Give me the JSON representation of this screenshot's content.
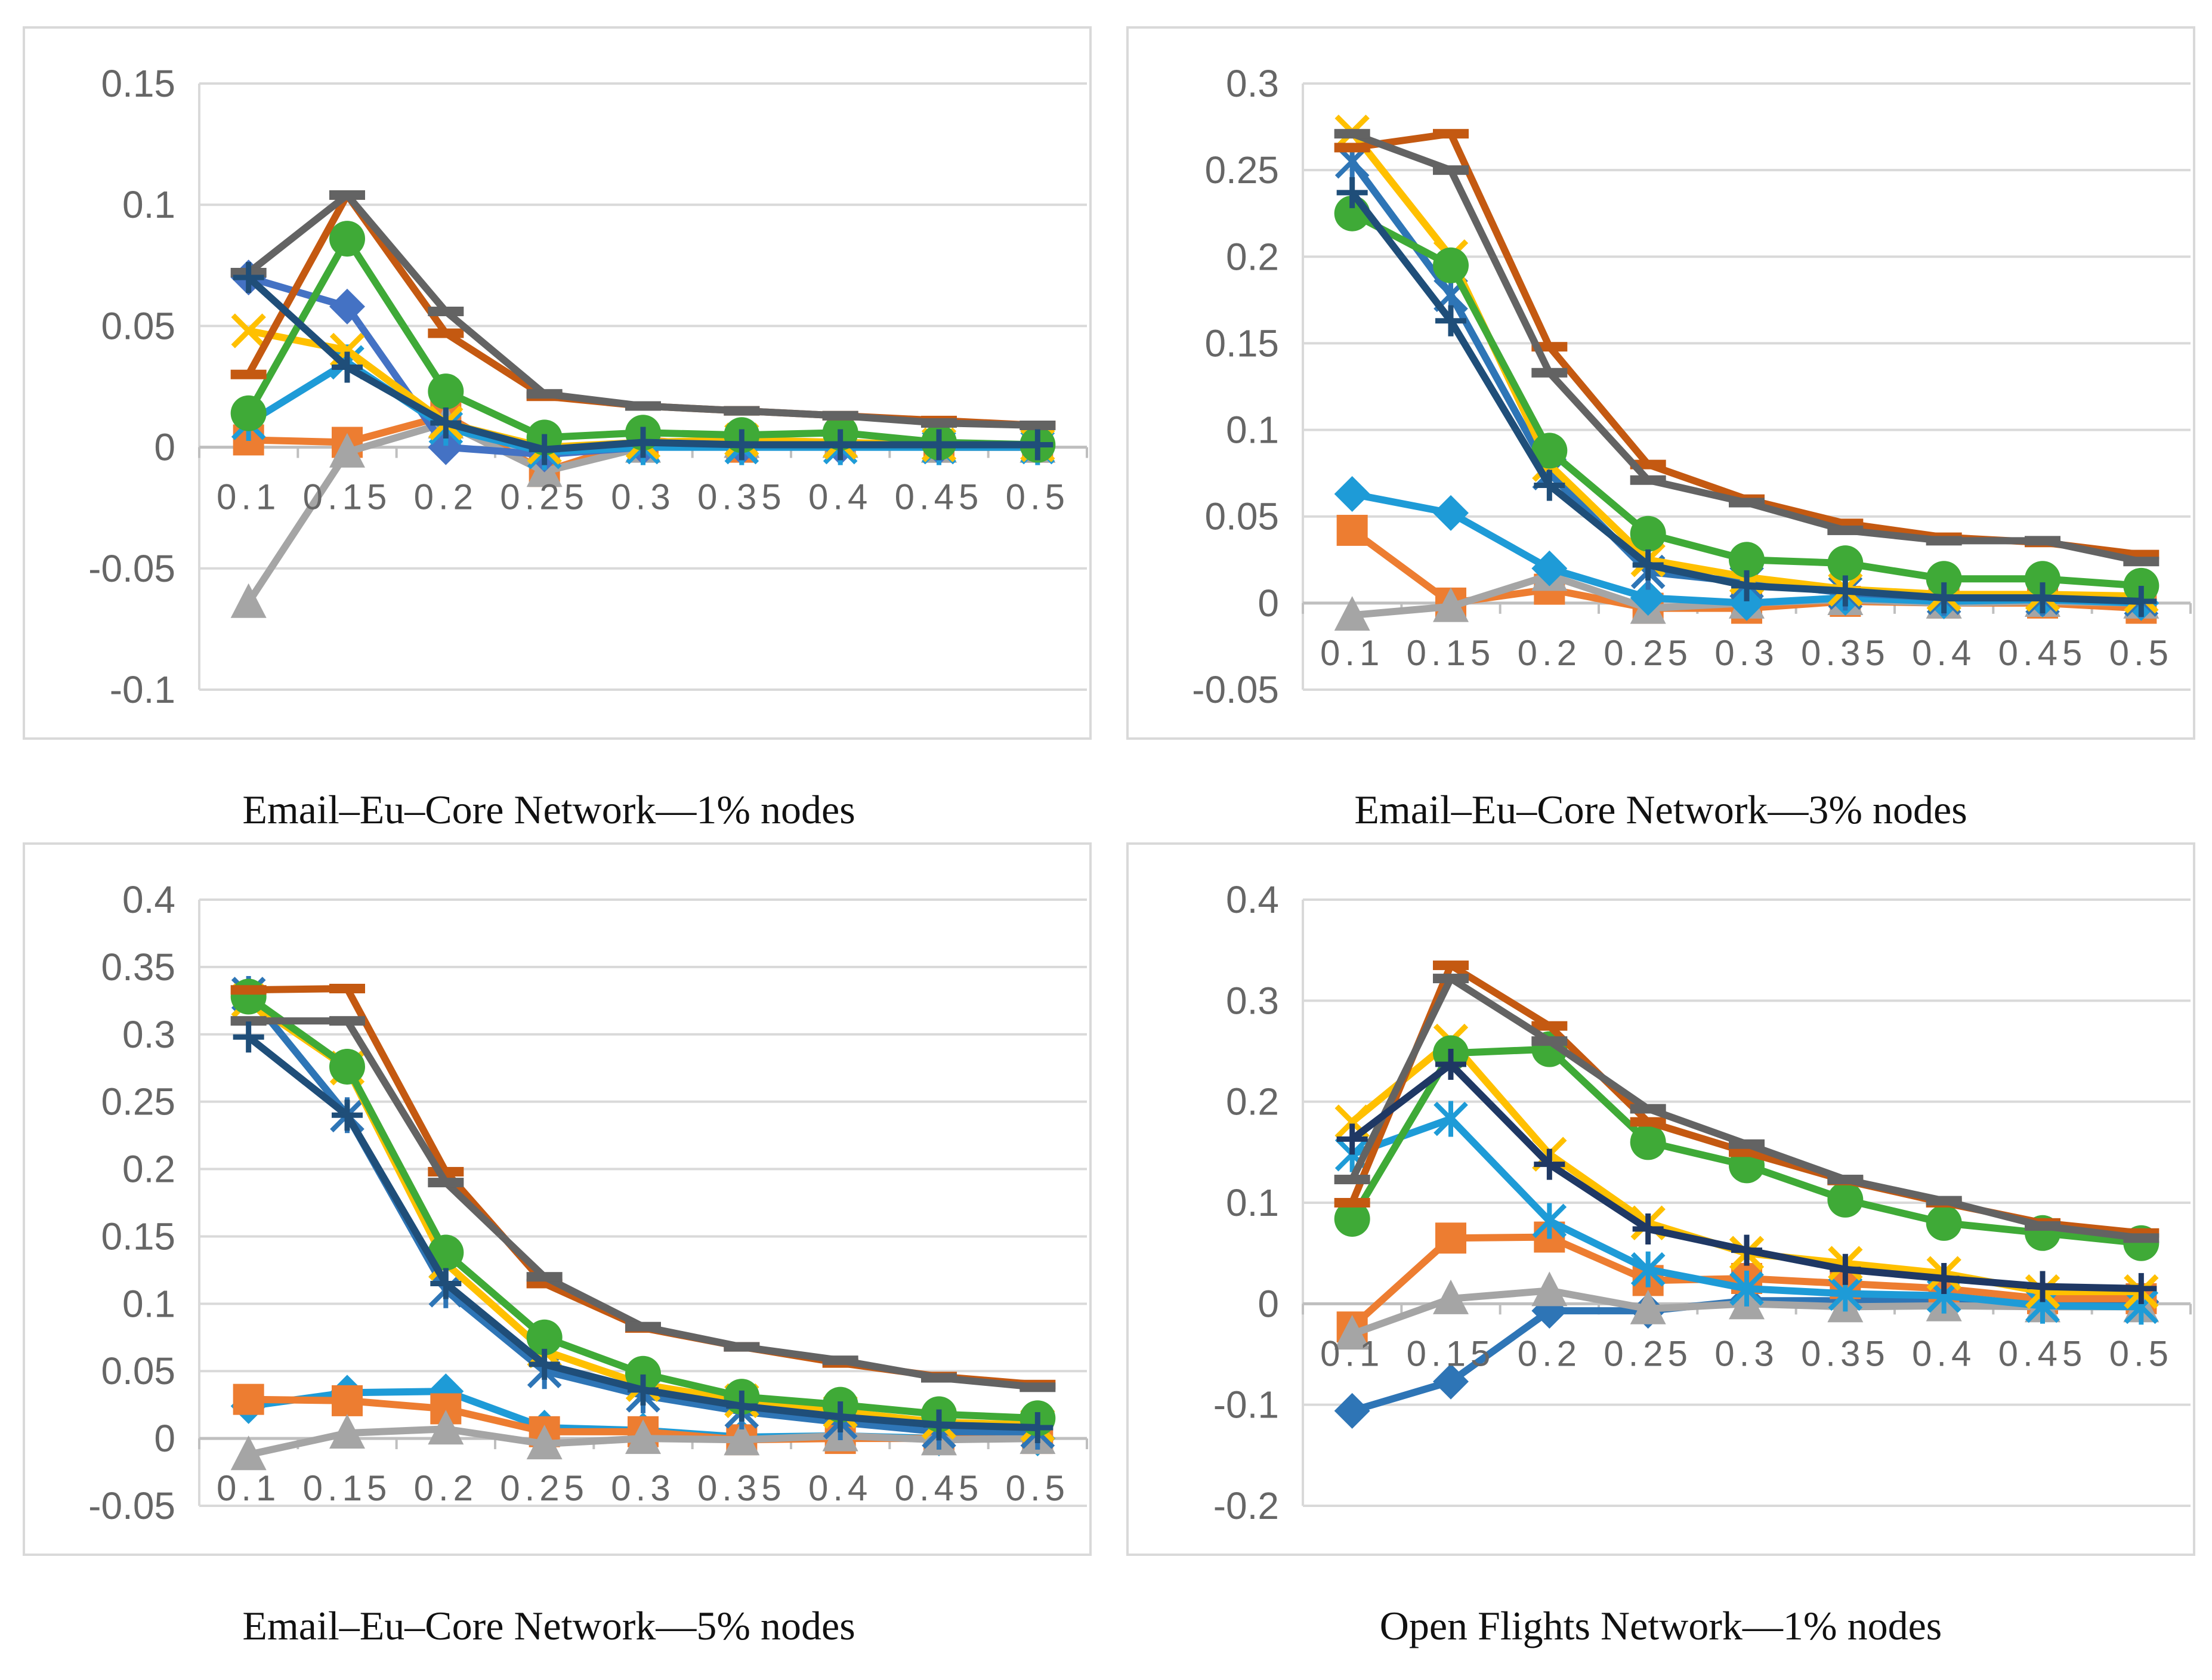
{
  "chart_data": [
    {
      "type": "line",
      "title": "Email–Eu–Core Network—1% nodes",
      "x": [
        "0.1",
        "0.15",
        "0.2",
        "0.25",
        "0.3",
        "0.35",
        "0.4",
        "0.45",
        "0.5"
      ],
      "ylim": [
        -0.1,
        0.15
      ],
      "yticks": [
        "-0.1",
        "-0.05",
        "0",
        "0.05",
        "0.1",
        "0.15"
      ],
      "ytick_values": [
        -0.1,
        -0.05,
        0,
        0.05,
        0.1,
        0.15
      ],
      "xlabel": "",
      "ylabel": "",
      "grid": true,
      "series": [
        {
          "name": "series-orange",
          "color": "#ed7d31",
          "marker": "square",
          "values": [
            0.003,
            0.002,
            0.013,
            -0.01,
            0.003,
            0.0,
            0.002,
            0.0,
            0.0
          ]
        },
        {
          "name": "series-gray-triangle",
          "color": "#a5a5a5",
          "marker": "triangle",
          "values": [
            -0.064,
            -0.002,
            0.01,
            -0.01,
            0.0,
            0.002,
            0.002,
            0.0,
            0.0
          ]
        },
        {
          "name": "series-light-blue-diamond",
          "color": "#4472c4",
          "marker": "diamond",
          "values": [
            0.07,
            0.058,
            0.0,
            -0.003,
            0.0,
            0.0,
            0.0,
            0.0,
            0.0
          ]
        },
        {
          "name": "series-cyan-star",
          "color": "#1e9bd7",
          "marker": "star",
          "values": [
            0.01,
            0.035,
            0.008,
            -0.002,
            0.0,
            0.0,
            0.0,
            0.0,
            0.0
          ]
        },
        {
          "name": "series-yellow-x",
          "color": "#ffc000",
          "marker": "x",
          "values": [
            0.048,
            0.04,
            0.01,
            0.0,
            0.002,
            0.003,
            0.002,
            0.001,
            0.001
          ]
        },
        {
          "name": "series-green-circle",
          "color": "#3faa37",
          "marker": "circle",
          "values": [
            0.014,
            0.086,
            0.023,
            0.004,
            0.006,
            0.005,
            0.006,
            0.002,
            0.001
          ]
        },
        {
          "name": "series-dark-orange-dash",
          "color": "#c45911",
          "marker": "dash",
          "values": [
            0.03,
            0.104,
            0.047,
            0.021,
            0.017,
            0.015,
            0.013,
            0.011,
            0.009
          ]
        },
        {
          "name": "series-dark-gray-dash",
          "color": "#636363",
          "marker": "dash",
          "values": [
            0.072,
            0.104,
            0.056,
            0.022,
            0.017,
            0.015,
            0.013,
            0.01,
            0.009
          ]
        },
        {
          "name": "series-navy-plus",
          "color": "#1f4e79",
          "marker": "plus",
          "values": [
            0.07,
            0.033,
            0.01,
            -0.001,
            0.002,
            0.001,
            0.001,
            0.001,
            0.001
          ]
        }
      ]
    },
    {
      "type": "line",
      "title": "Email–Eu–Core Network—3% nodes",
      "x": [
        "0.1",
        "0.15",
        "0.2",
        "0.25",
        "0.3",
        "0.35",
        "0.4",
        "0.45",
        "0.5"
      ],
      "ylim": [
        -0.05,
        0.3
      ],
      "yticks": [
        "-0.05",
        "0",
        "0.05",
        "0.1",
        "0.15",
        "0.2",
        "0.25",
        "0.3"
      ],
      "ytick_values": [
        -0.05,
        0,
        0.05,
        0.1,
        0.15,
        0.2,
        0.25,
        0.3
      ],
      "xlabel": "",
      "ylabel": "",
      "grid": true,
      "series": [
        {
          "name": "series-orange",
          "color": "#ed7d31",
          "marker": "square",
          "values": [
            0.042,
            0.0,
            0.008,
            -0.003,
            -0.003,
            0.001,
            0.0,
            0.0,
            -0.003
          ]
        },
        {
          "name": "series-gray-triangle",
          "color": "#a5a5a5",
          "marker": "triangle",
          "values": [
            -0.007,
            -0.002,
            0.016,
            -0.003,
            0.0,
            0.002,
            0.0,
            0.001,
            0.0
          ]
        },
        {
          "name": "series-light-blue-diamond",
          "color": "#1e9bd7",
          "marker": "diamond",
          "values": [
            0.063,
            0.052,
            0.02,
            0.003,
            0.0,
            0.003,
            0.001,
            0.002,
            0.0
          ]
        },
        {
          "name": "series-blue-star",
          "color": "#2e75b6",
          "marker": "star",
          "values": [
            0.255,
            0.178,
            0.075,
            0.018,
            0.012,
            0.006,
            0.003,
            0.003,
            0.002
          ]
        },
        {
          "name": "series-yellow-x",
          "color": "#ffc000",
          "marker": "x",
          "values": [
            0.272,
            0.2,
            0.08,
            0.025,
            0.015,
            0.008,
            0.005,
            0.005,
            0.004
          ]
        },
        {
          "name": "series-green-circle",
          "color": "#3faa37",
          "marker": "circle",
          "values": [
            0.225,
            0.195,
            0.088,
            0.04,
            0.025,
            0.023,
            0.014,
            0.014,
            0.01
          ]
        },
        {
          "name": "series-dark-orange-dash",
          "color": "#c45911",
          "marker": "dash",
          "values": [
            0.263,
            0.271,
            0.148,
            0.08,
            0.06,
            0.046,
            0.038,
            0.035,
            0.028
          ]
        },
        {
          "name": "series-dark-gray-dash",
          "color": "#636363",
          "marker": "dash",
          "values": [
            0.271,
            0.25,
            0.133,
            0.071,
            0.058,
            0.042,
            0.036,
            0.036,
            0.024
          ]
        },
        {
          "name": "series-navy-plus",
          "color": "#1f4e79",
          "marker": "plus",
          "values": [
            0.237,
            0.163,
            0.068,
            0.022,
            0.01,
            0.007,
            0.003,
            0.003,
            0.001
          ]
        }
      ]
    },
    {
      "type": "line",
      "title": "Email–Eu–Core Network—5% nodes",
      "x": [
        "0.1",
        "0.15",
        "0.2",
        "0.25",
        "0.3",
        "0.35",
        "0.4",
        "0.45",
        "0.5"
      ],
      "ylim": [
        -0.05,
        0.4
      ],
      "yticks": [
        "-0.05",
        "0",
        "0.05",
        "0.1",
        "0.15",
        "0.2",
        "0.25",
        "0.3",
        "0.35",
        "0.4"
      ],
      "ytick_values": [
        -0.05,
        0,
        0.05,
        0.1,
        0.15,
        0.2,
        0.25,
        0.3,
        0.35,
        0.4
      ],
      "xlabel": "",
      "ylabel": "",
      "grid": true,
      "series": [
        {
          "name": "series-light-blue-diamond",
          "color": "#1e9bd7",
          "marker": "diamond",
          "values": [
            0.024,
            0.034,
            0.035,
            0.008,
            0.006,
            0.001,
            0.002,
            0.0,
            0.0
          ]
        },
        {
          "name": "series-orange",
          "color": "#ed7d31",
          "marker": "square",
          "values": [
            0.029,
            0.028,
            0.022,
            0.005,
            0.005,
            -0.001,
            0.0,
            0.0,
            0.0
          ]
        },
        {
          "name": "series-gray-triangle",
          "color": "#a5a5a5",
          "marker": "triangle",
          "values": [
            -0.012,
            0.004,
            0.007,
            -0.004,
            0.0,
            -0.001,
            0.002,
            -0.001,
            0.0
          ]
        },
        {
          "name": "series-blue-star",
          "color": "#2e75b6",
          "marker": "star",
          "values": [
            0.33,
            0.24,
            0.11,
            0.05,
            0.032,
            0.02,
            0.012,
            0.005,
            0.005
          ]
        },
        {
          "name": "series-yellow-x",
          "color": "#ffc000",
          "marker": "x",
          "values": [
            0.325,
            0.275,
            0.13,
            0.065,
            0.04,
            0.028,
            0.02,
            0.012,
            0.01
          ]
        },
        {
          "name": "series-green-circle",
          "color": "#3faa37",
          "marker": "circle",
          "values": [
            0.328,
            0.276,
            0.138,
            0.075,
            0.048,
            0.031,
            0.025,
            0.018,
            0.015
          ]
        },
        {
          "name": "series-dark-orange-dash",
          "color": "#c45911",
          "marker": "dash",
          "values": [
            0.333,
            0.334,
            0.198,
            0.115,
            0.082,
            0.068,
            0.056,
            0.046,
            0.04
          ]
        },
        {
          "name": "series-dark-gray-dash",
          "color": "#636363",
          "marker": "dash",
          "values": [
            0.31,
            0.31,
            0.19,
            0.12,
            0.083,
            0.068,
            0.058,
            0.045,
            0.038
          ]
        },
        {
          "name": "series-navy-plus",
          "color": "#1f4e79",
          "marker": "plus",
          "values": [
            0.298,
            0.24,
            0.115,
            0.055,
            0.036,
            0.024,
            0.016,
            0.01,
            0.008
          ]
        }
      ]
    },
    {
      "type": "line",
      "title": "Open Flights Network—1% nodes",
      "x": [
        "0.1",
        "0.15",
        "0.2",
        "0.25",
        "0.3",
        "0.35",
        "0.4",
        "0.45",
        "0.5"
      ],
      "ylim": [
        -0.2,
        0.4
      ],
      "yticks": [
        "-0.2",
        "-0.1",
        "0",
        "0.1",
        "0.2",
        "0.3",
        "0.4"
      ],
      "ytick_values": [
        -0.2,
        -0.1,
        0,
        0.1,
        0.2,
        0.3,
        0.4
      ],
      "xlabel": "",
      "ylabel": "",
      "grid": true,
      "series": [
        {
          "name": "series-blue-diamond",
          "color": "#2e75b6",
          "marker": "diamond",
          "values": [
            -0.106,
            -0.077,
            -0.007,
            -0.007,
            0.003,
            0.003,
            0.003,
            0.002,
            0.002
          ]
        },
        {
          "name": "series-orange",
          "color": "#ed7d31",
          "marker": "square",
          "values": [
            -0.023,
            0.065,
            0.066,
            0.023,
            0.025,
            0.02,
            0.015,
            0.005,
            0.005
          ]
        },
        {
          "name": "series-gray-triangle",
          "color": "#a5a5a5",
          "marker": "triangle",
          "values": [
            -0.03,
            0.005,
            0.013,
            -0.005,
            0.0,
            -0.003,
            -0.002,
            -0.003,
            -0.003
          ]
        },
        {
          "name": "series-cyan-star",
          "color": "#1e9bd7",
          "marker": "star",
          "values": [
            0.148,
            0.183,
            0.082,
            0.034,
            0.015,
            0.01,
            0.008,
            -0.002,
            -0.003
          ]
        },
        {
          "name": "series-yellow-x",
          "color": "#ffc000",
          "marker": "x",
          "values": [
            0.18,
            0.26,
            0.148,
            0.08,
            0.05,
            0.04,
            0.03,
            0.012,
            0.012
          ]
        },
        {
          "name": "series-green-circle",
          "color": "#3faa37",
          "marker": "circle",
          "values": [
            0.084,
            0.248,
            0.252,
            0.16,
            0.137,
            0.103,
            0.08,
            0.07,
            0.06
          ]
        },
        {
          "name": "series-dark-orange-dash",
          "color": "#c45911",
          "marker": "dash",
          "values": [
            0.1,
            0.335,
            0.275,
            0.18,
            0.15,
            0.122,
            0.1,
            0.08,
            0.07
          ]
        },
        {
          "name": "series-dark-gray-dash",
          "color": "#636363",
          "marker": "dash",
          "values": [
            0.123,
            0.322,
            0.26,
            0.193,
            0.158,
            0.123,
            0.102,
            0.077,
            0.065
          ]
        },
        {
          "name": "series-navy-plus",
          "color": "#1f3864",
          "marker": "plus",
          "values": [
            0.163,
            0.237,
            0.138,
            0.074,
            0.053,
            0.034,
            0.025,
            0.017,
            0.015
          ]
        }
      ]
    }
  ],
  "captions": [
    "Email–Eu–Core Network—1% nodes",
    "Email–Eu–Core Network—3% nodes",
    "Email–Eu–Core Network—5% nodes",
    "Open Flights Network—1% nodes"
  ]
}
